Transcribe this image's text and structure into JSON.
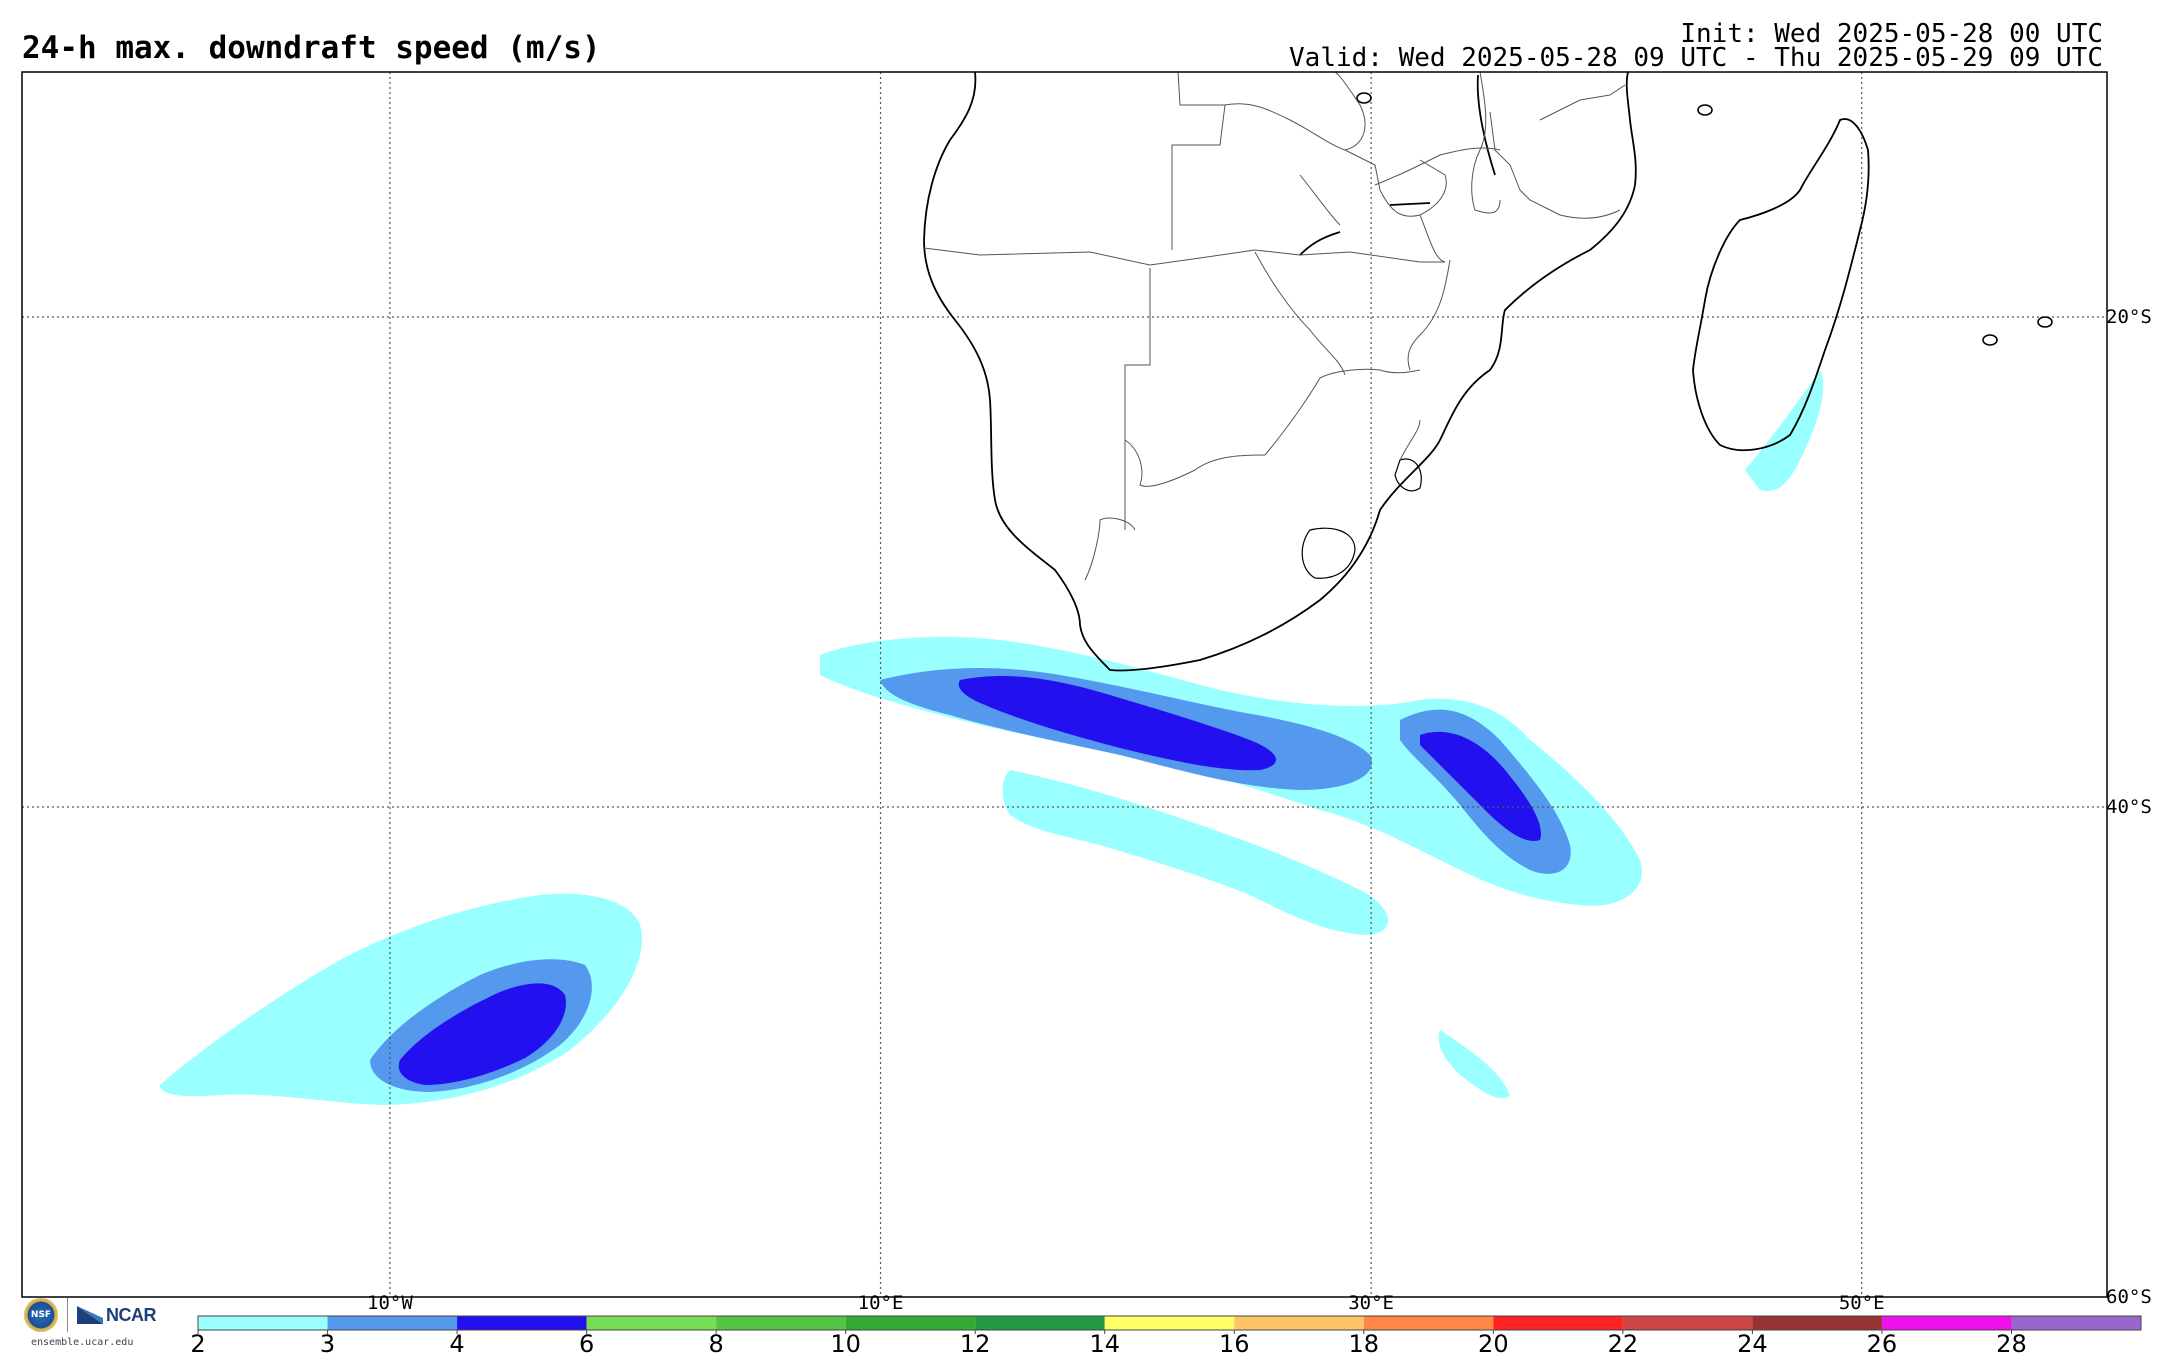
{
  "title": "24-h max. downdraft speed (m/s)",
  "init": "Init: Wed 2025-05-28 00 UTC",
  "valid": "Valid: Wed 2025-05-28 09 UTC - Thu 2025-05-29 09 UTC",
  "map": {
    "lon_range": [
      -25,
      60
    ],
    "lat_range": [
      -60,
      -10
    ],
    "lon_lines": [
      -10,
      10,
      30,
      50
    ],
    "lat_lines": [
      -20,
      -40
    ],
    "lon_labels": [
      "10°W",
      "10°E",
      "30°E",
      "50°E"
    ],
    "lat_labels": [
      "20°S",
      "40°S",
      "60°S"
    ]
  },
  "colorbar": {
    "bounds": [
      2,
      3,
      4,
      6,
      8,
      10,
      12,
      14,
      16,
      18,
      20,
      22,
      24,
      26,
      28,
      30
    ],
    "tick_labels": [
      "2",
      "3",
      "4",
      "6",
      "8",
      "10",
      "12",
      "14",
      "16",
      "18",
      "20",
      "22",
      "24",
      "26",
      "28"
    ],
    "colors": [
      "#99ffff",
      "#5599ee",
      "#2211ee",
      "#77dd55",
      "#55c444",
      "#33aa33",
      "#229944",
      "#ffff66",
      "#ffc466",
      "#ff8844",
      "#ff2222",
      "#cc4444",
      "#993333",
      "#ee11ee",
      "#9966cc"
    ]
  },
  "logo": {
    "nsf": "NSF",
    "ncar": "NCAR",
    "site": "ensemble.ucar.edu"
  }
}
